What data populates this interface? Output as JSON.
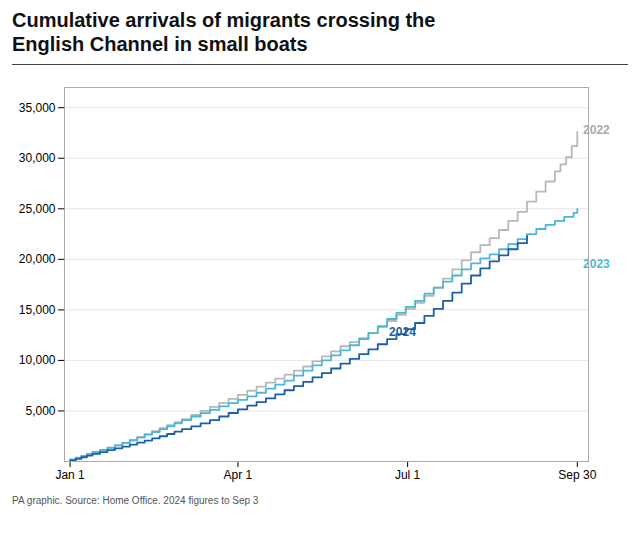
{
  "chart_data": {
    "type": "step",
    "title": "Cumulative arrivals of migrants crossing the\nEnglish Channel in small boats",
    "caption": "PA graphic. Source: Home Office. 2024 figures to Sep 3",
    "xlim": [
      -3,
      278
    ],
    "xticks": [
      {
        "value": 0,
        "label": "Jan 1"
      },
      {
        "value": 90,
        "label": "Apr 1"
      },
      {
        "value": 181,
        "label": "Jul 1"
      },
      {
        "value": 272,
        "label": "Sep 30"
      }
    ],
    "ylim": [
      0,
      37000
    ],
    "yticks": [
      {
        "value": 5000,
        "label": "5,000"
      },
      {
        "value": 10000,
        "label": "10,000"
      },
      {
        "value": 15000,
        "label": "15,000"
      },
      {
        "value": 20000,
        "label": "20,000"
      },
      {
        "value": 25000,
        "label": "25,000"
      },
      {
        "value": 30000,
        "label": "30,000"
      },
      {
        "value": 35000,
        "label": "35,000"
      }
    ],
    "grid": true,
    "series": [
      {
        "name": "2022",
        "color": "#b8b8b8",
        "x": [
          0,
          3,
          6,
          9,
          12,
          16,
          20,
          24,
          28,
          32,
          36,
          40,
          44,
          48,
          52,
          56,
          60,
          65,
          70,
          75,
          80,
          85,
          90,
          95,
          100,
          105,
          110,
          115,
          120,
          125,
          130,
          135,
          140,
          145,
          150,
          155,
          160,
          165,
          170,
          175,
          180,
          185,
          190,
          195,
          200,
          205,
          210,
          215,
          220,
          225,
          230,
          235,
          240,
          245,
          250,
          255,
          260,
          263,
          266,
          269,
          272
        ],
        "values": [
          150,
          300,
          500,
          700,
          900,
          1100,
          1350,
          1600,
          1850,
          2100,
          2400,
          2700,
          3000,
          3300,
          3600,
          3900,
          4200,
          4600,
          5000,
          5400,
          5800,
          6200,
          6600,
          7000,
          7400,
          7800,
          8200,
          8600,
          9000,
          9400,
          9900,
          10400,
          10900,
          11400,
          11800,
          12200,
          12700,
          13300,
          13900,
          14500,
          15100,
          15700,
          16400,
          17200,
          18100,
          19000,
          19900,
          20700,
          21400,
          22100,
          22900,
          23800,
          24700,
          25700,
          26700,
          27700,
          28700,
          29400,
          30100,
          31200,
          32600
        ]
      },
      {
        "name": "2023",
        "color": "#4db8d4",
        "x": [
          0,
          3,
          6,
          9,
          12,
          16,
          20,
          24,
          28,
          32,
          36,
          40,
          44,
          48,
          52,
          56,
          60,
          65,
          70,
          75,
          80,
          85,
          90,
          95,
          100,
          105,
          110,
          115,
          120,
          125,
          130,
          135,
          140,
          145,
          150,
          155,
          160,
          165,
          170,
          175,
          180,
          185,
          190,
          195,
          200,
          205,
          210,
          215,
          220,
          225,
          230,
          235,
          240,
          245,
          250,
          255,
          260,
          265,
          270,
          272
        ],
        "values": [
          200,
          380,
          560,
          750,
          940,
          1150,
          1360,
          1600,
          1840,
          2100,
          2380,
          2650,
          2920,
          3200,
          3480,
          3780,
          4100,
          4450,
          4780,
          5100,
          5450,
          5780,
          6100,
          6450,
          6800,
          7200,
          7600,
          8000,
          8500,
          9000,
          9500,
          10000,
          10500,
          11000,
          11500,
          12100,
          12700,
          13400,
          14100,
          14700,
          15300,
          15900,
          16600,
          17200,
          17800,
          18400,
          19000,
          19600,
          20100,
          20500,
          21000,
          21500,
          22000,
          22500,
          23000,
          23400,
          23800,
          24200,
          24600,
          25000
        ]
      },
      {
        "name": "2024",
        "color": "#1a5fa8",
        "x": [
          0,
          3,
          6,
          9,
          12,
          16,
          20,
          24,
          28,
          32,
          36,
          40,
          44,
          48,
          52,
          56,
          60,
          65,
          70,
          75,
          80,
          85,
          90,
          95,
          100,
          105,
          110,
          115,
          120,
          125,
          130,
          135,
          140,
          145,
          150,
          155,
          160,
          165,
          170,
          175,
          180,
          185,
          190,
          195,
          200,
          205,
          210,
          215,
          220,
          225,
          230,
          235,
          240,
          245
        ],
        "values": [
          100,
          250,
          420,
          590,
          750,
          930,
          1120,
          1300,
          1480,
          1670,
          1870,
          2070,
          2280,
          2500,
          2720,
          2960,
          3200,
          3480,
          3780,
          4100,
          4450,
          4800,
          5160,
          5520,
          5880,
          6250,
          6650,
          7050,
          7460,
          7880,
          8320,
          8750,
          9200,
          9680,
          10150,
          10620,
          11100,
          11600,
          12100,
          12600,
          13100,
          13700,
          14400,
          15100,
          15900,
          16700,
          17600,
          18400,
          19100,
          19800,
          20400,
          21000,
          21600,
          22300
        ]
      }
    ],
    "annotations": [
      {
        "text": "2022",
        "x": 274,
        "y": 32800,
        "color": "#aaaaaa"
      },
      {
        "text": "2023",
        "x": 274,
        "y": 19500,
        "color": "#4db8d4"
      },
      {
        "text": "2024",
        "x": 170,
        "y": 12800,
        "color": "#1a5fa8"
      }
    ]
  }
}
